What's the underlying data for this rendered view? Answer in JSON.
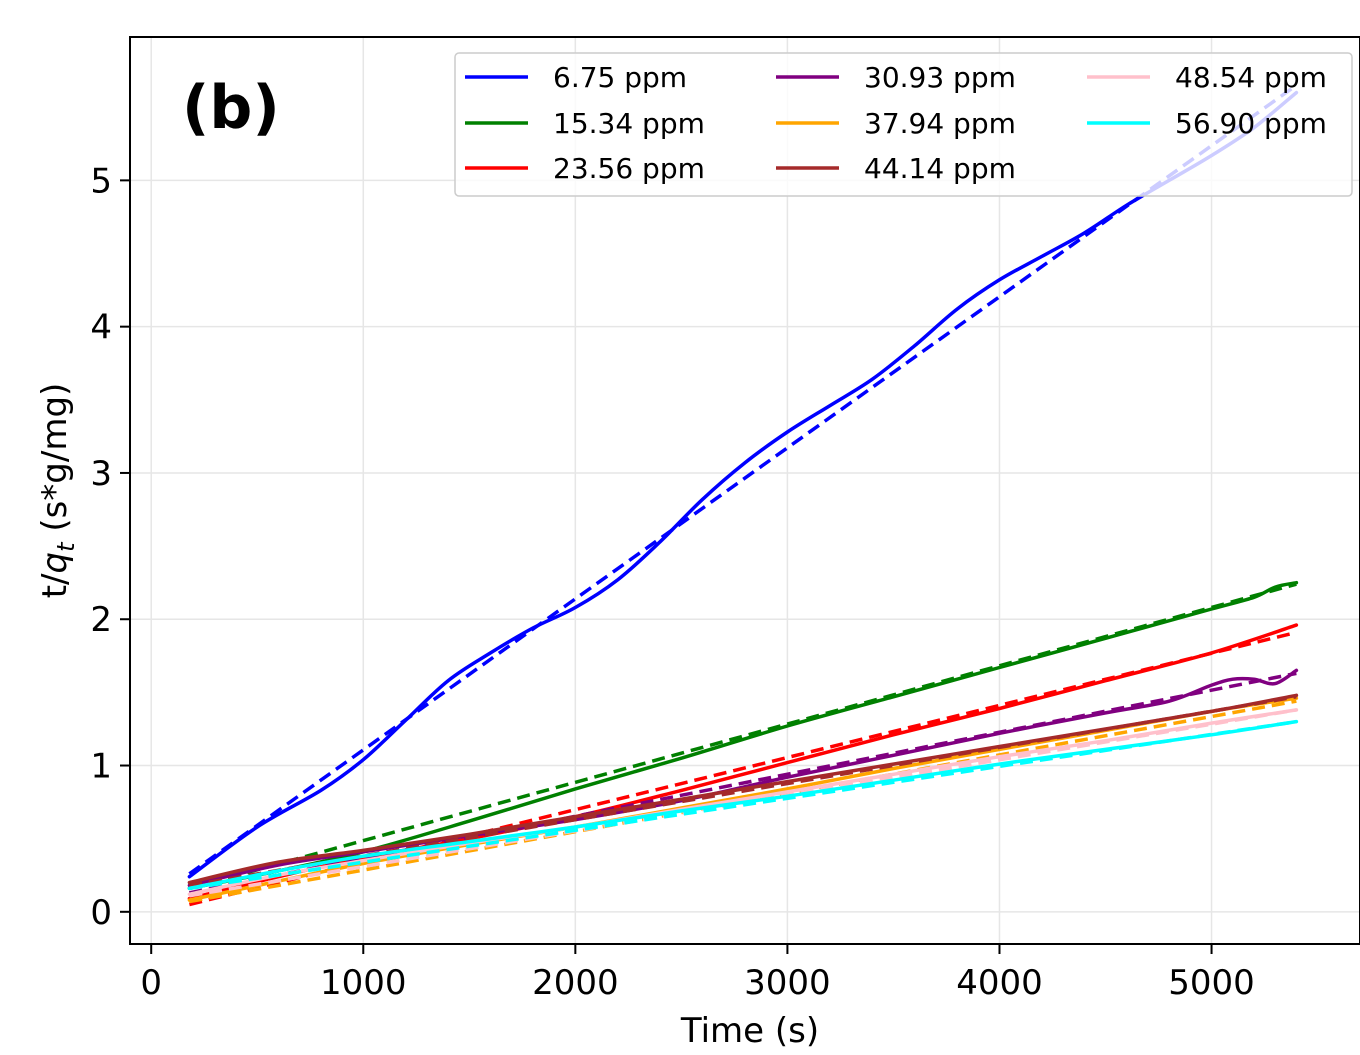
{
  "chart_data": {
    "type": "line",
    "panel_label": "(b)",
    "xlabel": "Time (s)",
    "ylabel_prefix": "t/",
    "ylabel_var": "q",
    "ylabel_sub": "t",
    "ylabel_suffix": " (s*g/mg)",
    "xlim": [
      -100,
      5700
    ],
    "ylim": [
      -0.22,
      5.98
    ],
    "xticks": [
      0,
      1000,
      2000,
      3000,
      4000,
      5000
    ],
    "xtick_labels": [
      "0",
      "1000",
      "2000",
      "3000",
      "4000",
      "5000"
    ],
    "yticks": [
      0,
      1,
      2,
      3,
      4,
      5
    ],
    "ytick_labels": [
      "0",
      "1",
      "2",
      "3",
      "4",
      "5"
    ],
    "grid": true,
    "legend_placement": "top-right",
    "line_styles": {
      "measured": "solid",
      "fit": "dashed"
    },
    "series": [
      {
        "name": "6.75 ppm",
        "color": "#0000ff",
        "x": [
          180,
          500,
          800,
          1000,
          1200,
          1400,
          1600,
          1800,
          2000,
          2200,
          2400,
          2600,
          2800,
          3000,
          3200,
          3400,
          3600,
          3800,
          4000,
          4200,
          4400,
          4600,
          4800,
          5000,
          5200,
          5400
        ],
        "values": [
          0.24,
          0.58,
          0.83,
          1.04,
          1.31,
          1.58,
          1.77,
          1.94,
          2.08,
          2.27,
          2.53,
          2.82,
          3.07,
          3.28,
          3.46,
          3.64,
          3.87,
          4.12,
          4.32,
          4.48,
          4.64,
          4.83,
          5.0,
          5.17,
          5.36,
          5.6
        ],
        "fit": {
          "x": [
            180,
            5400
          ],
          "values": [
            0.26,
            5.65
          ]
        }
      },
      {
        "name": "15.34 ppm",
        "color": "#008000",
        "x": [
          180,
          600,
          1000,
          1500,
          2000,
          2500,
          3000,
          3500,
          4000,
          4500,
          5000,
          5200,
          5300,
          5400
        ],
        "values": [
          0.16,
          0.28,
          0.41,
          0.62,
          0.84,
          1.05,
          1.27,
          1.47,
          1.67,
          1.87,
          2.07,
          2.15,
          2.22,
          2.25
        ],
        "fit": {
          "x": [
            180,
            5400
          ],
          "values": [
            0.16,
            2.24
          ]
        }
      },
      {
        "name": "23.56 ppm",
        "color": "#ff0000",
        "x": [
          180,
          600,
          1000,
          1500,
          2000,
          2500,
          3000,
          3500,
          4000,
          4500,
          5000,
          5400
        ],
        "values": [
          0.09,
          0.24,
          0.37,
          0.5,
          0.65,
          0.83,
          1.02,
          1.21,
          1.39,
          1.58,
          1.77,
          1.96
        ],
        "fit": {
          "x": [
            180,
            5400
          ],
          "values": [
            0.05,
            1.91
          ]
        }
      },
      {
        "name": "30.93 ppm",
        "color": "#800080",
        "x": [
          180,
          600,
          1000,
          1500,
          2000,
          2500,
          3000,
          3500,
          4000,
          4500,
          4800,
          5000,
          5100,
          5200,
          5300,
          5400
        ],
        "values": [
          0.18,
          0.32,
          0.41,
          0.52,
          0.63,
          0.76,
          0.92,
          1.07,
          1.22,
          1.36,
          1.44,
          1.55,
          1.59,
          1.59,
          1.56,
          1.65
        ],
        "fit": {
          "x": [
            180,
            5400
          ],
          "values": [
            0.13,
            1.63
          ]
        }
      },
      {
        "name": "37.94 ppm",
        "color": "#ffa500",
        "x": [
          180,
          600,
          1000,
          1500,
          2000,
          2500,
          3000,
          3500,
          4000,
          4500,
          5000,
          5400
        ],
        "values": [
          0.08,
          0.21,
          0.33,
          0.46,
          0.58,
          0.71,
          0.84,
          0.98,
          1.11,
          1.24,
          1.37,
          1.46
        ],
        "fit": {
          "x": [
            180,
            5400
          ],
          "values": [
            0.07,
            1.44
          ]
        }
      },
      {
        "name": "44.14 ppm",
        "color": "#a52a2a",
        "x": [
          180,
          600,
          1000,
          1500,
          2000,
          2500,
          3000,
          3500,
          4000,
          4500,
          5000,
          5400
        ],
        "values": [
          0.2,
          0.34,
          0.42,
          0.53,
          0.65,
          0.77,
          0.89,
          1.01,
          1.13,
          1.25,
          1.37,
          1.48
        ],
        "fit": {
          "x": [
            180,
            5400
          ],
          "values": [
            0.18,
            1.47
          ]
        }
      },
      {
        "name": "48.54 ppm",
        "color": "#ffc0cb",
        "x": [
          180,
          600,
          1000,
          1500,
          2000,
          2500,
          3000,
          3500,
          4000,
          4500,
          5000,
          5400
        ],
        "values": [
          0.12,
          0.25,
          0.35,
          0.47,
          0.58,
          0.7,
          0.82,
          0.94,
          1.06,
          1.17,
          1.29,
          1.38
        ],
        "fit": {
          "x": [
            180,
            5400
          ],
          "values": [
            0.11,
            1.38
          ]
        }
      },
      {
        "name": "56.90 ppm",
        "color": "#00ffff",
        "x": [
          180,
          600,
          1000,
          1500,
          2000,
          2500,
          3000,
          3500,
          4000,
          4500,
          5000,
          5400
        ],
        "values": [
          0.16,
          0.28,
          0.38,
          0.48,
          0.58,
          0.69,
          0.79,
          0.9,
          1.01,
          1.11,
          1.21,
          1.3
        ],
        "fit": {
          "x": [
            180,
            5400
          ],
          "values": [
            0.16,
            1.3
          ]
        }
      }
    ]
  }
}
